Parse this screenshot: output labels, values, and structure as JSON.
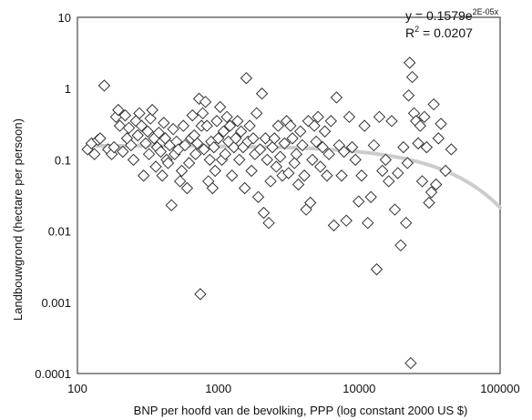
{
  "chart_data": {
    "type": "scatter",
    "title": "",
    "xlabel": "BNP per hoofd van de bevolking, PPP (log constant 2000 US $)",
    "ylabel": "Landbouwgrond (hectare per persoon)",
    "x_scale": "log",
    "y_scale": "log",
    "xlim": [
      100,
      100000
    ],
    "ylim": [
      0.0001,
      10
    ],
    "x_ticks": [
      "100",
      "1000",
      "10000",
      "100000"
    ],
    "y_ticks": [
      "0.0001",
      "0.001",
      "0.01",
      "0.1",
      "1",
      "10"
    ],
    "grid": false,
    "marker": "open-diamond",
    "trendline": {
      "type": "exponential",
      "a": 0.1579,
      "b": -2e-05,
      "equation_main": "y = 0.1579e",
      "equation_exp": "2E-05x",
      "r2_main": "R",
      "r2_sup": "2",
      "r2_value": " = 0.0207",
      "color": "#cccccc"
    },
    "points": [
      [
        118,
        0.14
      ],
      [
        126,
        0.17
      ],
      [
        132,
        0.12
      ],
      [
        140,
        0.19
      ],
      [
        145,
        0.2
      ],
      [
        155,
        1.1
      ],
      [
        165,
        0.14
      ],
      [
        175,
        0.12
      ],
      [
        182,
        0.15
      ],
      [
        188,
        0.4
      ],
      [
        195,
        0.5
      ],
      [
        200,
        0.3
      ],
      [
        210,
        0.13
      ],
      [
        218,
        0.42
      ],
      [
        225,
        0.2
      ],
      [
        232,
        0.28
      ],
      [
        240,
        0.16
      ],
      [
        250,
        0.1
      ],
      [
        260,
        0.35
      ],
      [
        268,
        0.22
      ],
      [
        275,
        0.45
      ],
      [
        285,
        0.3
      ],
      [
        295,
        0.06
      ],
      [
        305,
        0.17
      ],
      [
        315,
        0.25
      ],
      [
        322,
        0.12
      ],
      [
        330,
        0.38
      ],
      [
        340,
        0.5
      ],
      [
        350,
        0.2
      ],
      [
        360,
        0.08
      ],
      [
        368,
        0.15
      ],
      [
        378,
        0.24
      ],
      [
        390,
        0.13
      ],
      [
        400,
        0.06
      ],
      [
        410,
        0.33
      ],
      [
        420,
        0.2
      ],
      [
        430,
        0.1
      ],
      [
        440,
        0.09
      ],
      [
        452,
        0.16
      ],
      [
        465,
        0.023
      ],
      [
        478,
        0.27
      ],
      [
        490,
        0.12
      ],
      [
        505,
        0.18
      ],
      [
        520,
        0.14
      ],
      [
        535,
        0.05
      ],
      [
        550,
        0.07
      ],
      [
        565,
        0.3
      ],
      [
        580,
        0.16
      ],
      [
        600,
        0.04
      ],
      [
        620,
        0.09
      ],
      [
        640,
        0.2
      ],
      [
        655,
        0.42
      ],
      [
        675,
        0.22
      ],
      [
        690,
        0.12
      ],
      [
        710,
        0.17
      ],
      [
        730,
        0.72
      ],
      [
        745,
        0.0013
      ],
      [
        760,
        0.3
      ],
      [
        775,
        0.45
      ],
      [
        790,
        0.14
      ],
      [
        810,
        0.65
      ],
      [
        830,
        0.3
      ],
      [
        850,
        0.05
      ],
      [
        870,
        0.1
      ],
      [
        890,
        0.18
      ],
      [
        910,
        0.04
      ],
      [
        930,
        0.15
      ],
      [
        950,
        0.07
      ],
      [
        975,
        0.35
      ],
      [
        1000,
        0.2
      ],
      [
        1030,
        0.55
      ],
      [
        1060,
        0.1
      ],
      [
        1090,
        0.25
      ],
      [
        1120,
        0.12
      ],
      [
        1150,
        0.4
      ],
      [
        1180,
        0.18
      ],
      [
        1210,
        0.3
      ],
      [
        1250,
        0.06
      ],
      [
        1290,
        0.15
      ],
      [
        1330,
        0.2
      ],
      [
        1370,
        0.35
      ],
      [
        1410,
        0.1
      ],
      [
        1450,
        0.25
      ],
      [
        1500,
        0.15
      ],
      [
        1540,
        0.04
      ],
      [
        1580,
        1.4
      ],
      [
        1620,
        0.18
      ],
      [
        1670,
        0.3
      ],
      [
        1720,
        0.07
      ],
      [
        1770,
        0.2
      ],
      [
        1820,
        0.12
      ],
      [
        1870,
        0.45
      ],
      [
        1920,
        0.03
      ],
      [
        1980,
        0.14
      ],
      [
        2040,
        0.85
      ],
      [
        2100,
        0.018
      ],
      [
        2160,
        0.2
      ],
      [
        2220,
        0.1
      ],
      [
        2280,
        0.013
      ],
      [
        2350,
        0.05
      ],
      [
        2420,
        0.15
      ],
      [
        2500,
        0.2
      ],
      [
        2580,
        0.08
      ],
      [
        2660,
        0.3
      ],
      [
        2750,
        0.11
      ],
      [
        2850,
        0.06
      ],
      [
        2950,
        0.17
      ],
      [
        3050,
        0.35
      ],
      [
        3150,
        0.065
      ],
      [
        3250,
        0.3
      ],
      [
        3360,
        0.2
      ],
      [
        3470,
        0.09
      ],
      [
        3580,
        0.12
      ],
      [
        3700,
        0.045
      ],
      [
        3820,
        0.25
      ],
      [
        3950,
        0.16
      ],
      [
        4080,
        0.06
      ],
      [
        4200,
        0.02
      ],
      [
        4350,
        0.35
      ],
      [
        4500,
        0.025
      ],
      [
        4650,
        0.1
      ],
      [
        4800,
        0.3
      ],
      [
        4950,
        0.18
      ],
      [
        5100,
        0.4
      ],
      [
        5300,
        0.08
      ],
      [
        5500,
        0.15
      ],
      [
        5700,
        0.25
      ],
      [
        5900,
        0.06
      ],
      [
        6100,
        0.12
      ],
      [
        6300,
        0.35
      ],
      [
        6600,
        0.012
      ],
      [
        6900,
        0.75
      ],
      [
        7200,
        0.16
      ],
      [
        7500,
        0.06
      ],
      [
        7800,
        0.13
      ],
      [
        8100,
        0.014
      ],
      [
        8500,
        0.4
      ],
      [
        8900,
        0.15
      ],
      [
        9400,
        0.1
      ],
      [
        9900,
        0.026
      ],
      [
        10400,
        0.06
      ],
      [
        10900,
        0.3
      ],
      [
        11500,
        0.013
      ],
      [
        12100,
        0.03
      ],
      [
        12700,
        0.16
      ],
      [
        13300,
        0.0029
      ],
      [
        13900,
        0.4
      ],
      [
        14600,
        0.07
      ],
      [
        15400,
        0.1
      ],
      [
        16200,
        0.05
      ],
      [
        17000,
        0.35
      ],
      [
        17900,
        0.02
      ],
      [
        18800,
        0.065
      ],
      [
        19700,
        0.0063
      ],
      [
        20600,
        0.15
      ],
      [
        21500,
        0.013
      ],
      [
        22000,
        0.09
      ],
      [
        22400,
        0.8
      ],
      [
        22800,
        2.3
      ],
      [
        23200,
        0.00014
      ],
      [
        23800,
        1.45
      ],
      [
        24500,
        0.45
      ],
      [
        25300,
        0.35
      ],
      [
        26200,
        0.17
      ],
      [
        27100,
        0.3
      ],
      [
        28000,
        0.05
      ],
      [
        29000,
        0.4
      ],
      [
        30100,
        0.15
      ],
      [
        31300,
        0.025
      ],
      [
        32500,
        0.035
      ],
      [
        33800,
        0.6
      ],
      [
        35100,
        0.045
      ],
      [
        36500,
        0.2
      ],
      [
        38000,
        0.32
      ],
      [
        41000,
        0.07
      ],
      [
        45000,
        0.14
      ]
    ]
  }
}
